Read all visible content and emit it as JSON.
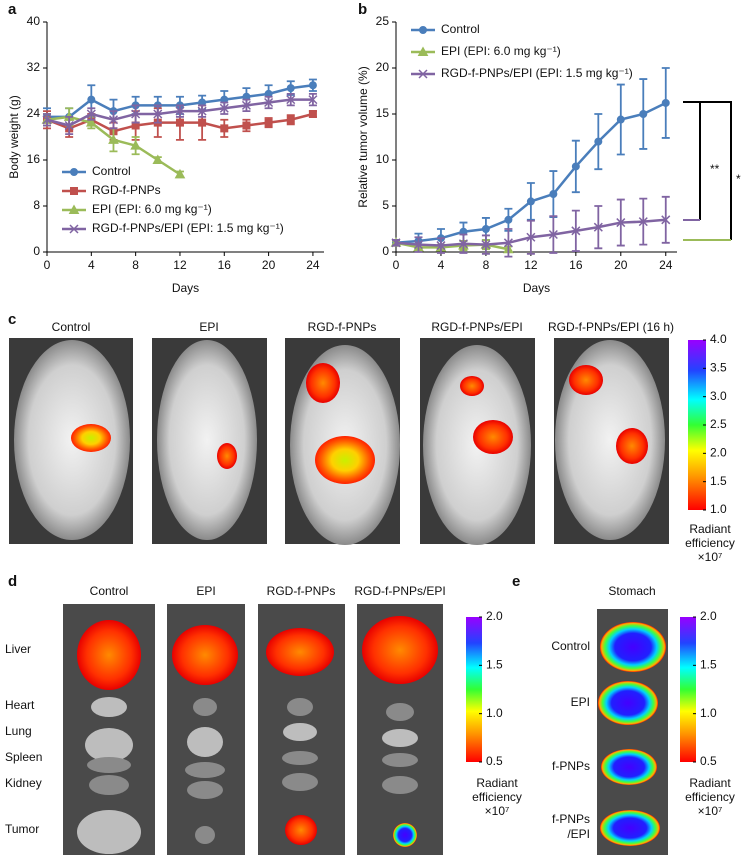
{
  "chart_data": [
    {
      "type": "line",
      "label": "a",
      "xlabel": "Days",
      "ylabel": "Body weight (g)",
      "x": [
        0,
        2,
        4,
        6,
        8,
        10,
        12,
        14,
        16,
        18,
        20,
        22,
        24
      ],
      "xlim": [
        0,
        25
      ],
      "ylim": [
        0,
        40
      ],
      "xticks": [
        0,
        4,
        8,
        12,
        16,
        20,
        24
      ],
      "yticks": [
        0,
        8,
        16,
        24,
        32,
        40
      ],
      "legend": "lower left",
      "series": [
        {
          "name": "Control",
          "color": "#4a7ebb",
          "marker": "circle",
          "values": [
            23.5,
            23.5,
            26.5,
            24.5,
            25.5,
            25.5,
            25.5,
            26,
            26.5,
            27,
            27.5,
            28.5,
            29
          ],
          "errors": [
            1.5,
            1.5,
            2.5,
            2,
            1.5,
            1.5,
            1.5,
            1.2,
            1.5,
            1.5,
            1.5,
            1.2,
            1
          ]
        },
        {
          "name": "RGD-f-PNPs",
          "color": "#c0504d",
          "marker": "square",
          "values": [
            23,
            21.5,
            23,
            21,
            22,
            22.5,
            22.5,
            22.5,
            21.5,
            22,
            22.5,
            23,
            24
          ],
          "errors": [
            1.5,
            1.5,
            1,
            1.5,
            2.5,
            2.5,
            3,
            3,
            1.5,
            1,
            0.8,
            0.8,
            0.5
          ]
        },
        {
          "name": "EPI (EPI: 6.0 mg kg⁻¹)",
          "color": "#9bbb59",
          "marker": "triangle",
          "values": [
            23,
            23.5,
            22.5,
            19.5,
            18.5,
            16,
            13.5,
            null,
            null,
            null,
            null,
            null,
            null
          ],
          "errors": [
            1,
            1.5,
            1,
            2,
            1.5,
            0.5,
            0.5,
            null,
            null,
            null,
            null,
            null,
            null
          ]
        },
        {
          "name": "RGD-f-PNPs/EPI (EPI: 1.5 mg kg⁻¹)",
          "color": "#8064a2",
          "marker": "x",
          "values": [
            23,
            22,
            24,
            23,
            24,
            24,
            24.5,
            24.5,
            25,
            25.5,
            26,
            26.5,
            26.5
          ],
          "errors": [
            1,
            1.5,
            1,
            1.5,
            1.5,
            1.5,
            1,
            1,
            1,
            1,
            1,
            1,
            1
          ]
        }
      ]
    },
    {
      "type": "line",
      "label": "b",
      "xlabel": "Days",
      "ylabel": "Relative tumor volume (%)",
      "x": [
        0,
        2,
        4,
        6,
        8,
        10,
        12,
        14,
        16,
        18,
        20,
        22,
        24
      ],
      "xlim": [
        0,
        25
      ],
      "ylim": [
        0,
        25
      ],
      "xticks": [
        0,
        4,
        8,
        12,
        16,
        20,
        24
      ],
      "yticks": [
        0,
        5,
        10,
        15,
        20,
        25
      ],
      "legend": "upper left",
      "annotations": [
        "**",
        "*"
      ],
      "series": [
        {
          "name": "Control",
          "color": "#4a7ebb",
          "marker": "circle",
          "values": [
            1,
            1.2,
            1.5,
            2.2,
            2.5,
            3.5,
            5.5,
            6.3,
            9.3,
            12,
            14.4,
            15,
            16.2
          ],
          "errors": [
            0.3,
            0.8,
            1,
            1,
            1.2,
            1.2,
            2,
            2.5,
            2.8,
            3,
            3.8,
            3.8,
            3.8
          ]
        },
        {
          "name": "EPI (EPI: 6.0 mg kg⁻¹)",
          "color": "#9bbb59",
          "marker": "triangle",
          "values": [
            1,
            0.5,
            0.5,
            0.7,
            0.8,
            0.3,
            null,
            null,
            null,
            null,
            null,
            null,
            null
          ],
          "errors": [
            0.2,
            0.3,
            0.3,
            0.5,
            0.5,
            0.3,
            null,
            null,
            null,
            null,
            null,
            null,
            null
          ]
        },
        {
          "name": "RGD-f-PNPs/EPI (EPI: 1.5 mg kg⁻¹)",
          "color": "#8064a2",
          "marker": "x",
          "values": [
            1,
            0.8,
            0.7,
            0.9,
            0.8,
            1,
            1.6,
            1.9,
            2.3,
            2.7,
            3.2,
            3.3,
            3.5
          ],
          "errors": [
            0.3,
            0.8,
            0.8,
            1,
            1,
            1.5,
            1.8,
            2,
            2.2,
            2.3,
            2.5,
            2.5,
            2.5
          ]
        }
      ]
    }
  ],
  "panel_c": {
    "label": "c",
    "titles": [
      "Control",
      "EPI",
      "RGD-f-PNPs",
      "RGD-f-PNPs/EPI",
      "RGD-f-PNPs/EPI (16 h)"
    ],
    "colorbar": {
      "ticks": [
        "4.0",
        "3.5",
        "3.0",
        "2.5",
        "2.0",
        "1.5",
        "1.0"
      ],
      "title": [
        "Radiant",
        "efficiency",
        "×10⁷"
      ]
    }
  },
  "panel_d": {
    "label": "d",
    "titles": [
      "Control",
      "EPI",
      "RGD-f-PNPs",
      "RGD-f-PNPs/EPI"
    ],
    "organs": [
      "Liver",
      "Heart",
      "Lung",
      "Spleen",
      "Kidney",
      "Tumor"
    ],
    "colorbar": {
      "ticks": [
        "2.0",
        "1.5",
        "1.0",
        "0.5"
      ],
      "title": [
        "Radiant",
        "efficiency",
        "×10⁷"
      ]
    }
  },
  "panel_e": {
    "label": "e",
    "title": "Stomach",
    "rows": [
      "Control",
      "EPI",
      "f-PNPs",
      [
        "f-PNPs",
        "/EPI"
      ]
    ],
    "colorbar": {
      "ticks": [
        "2.0",
        "1.5",
        "1.0",
        "0.5"
      ],
      "title": [
        "Radiant",
        "efficiency",
        "×10⁷"
      ]
    }
  }
}
